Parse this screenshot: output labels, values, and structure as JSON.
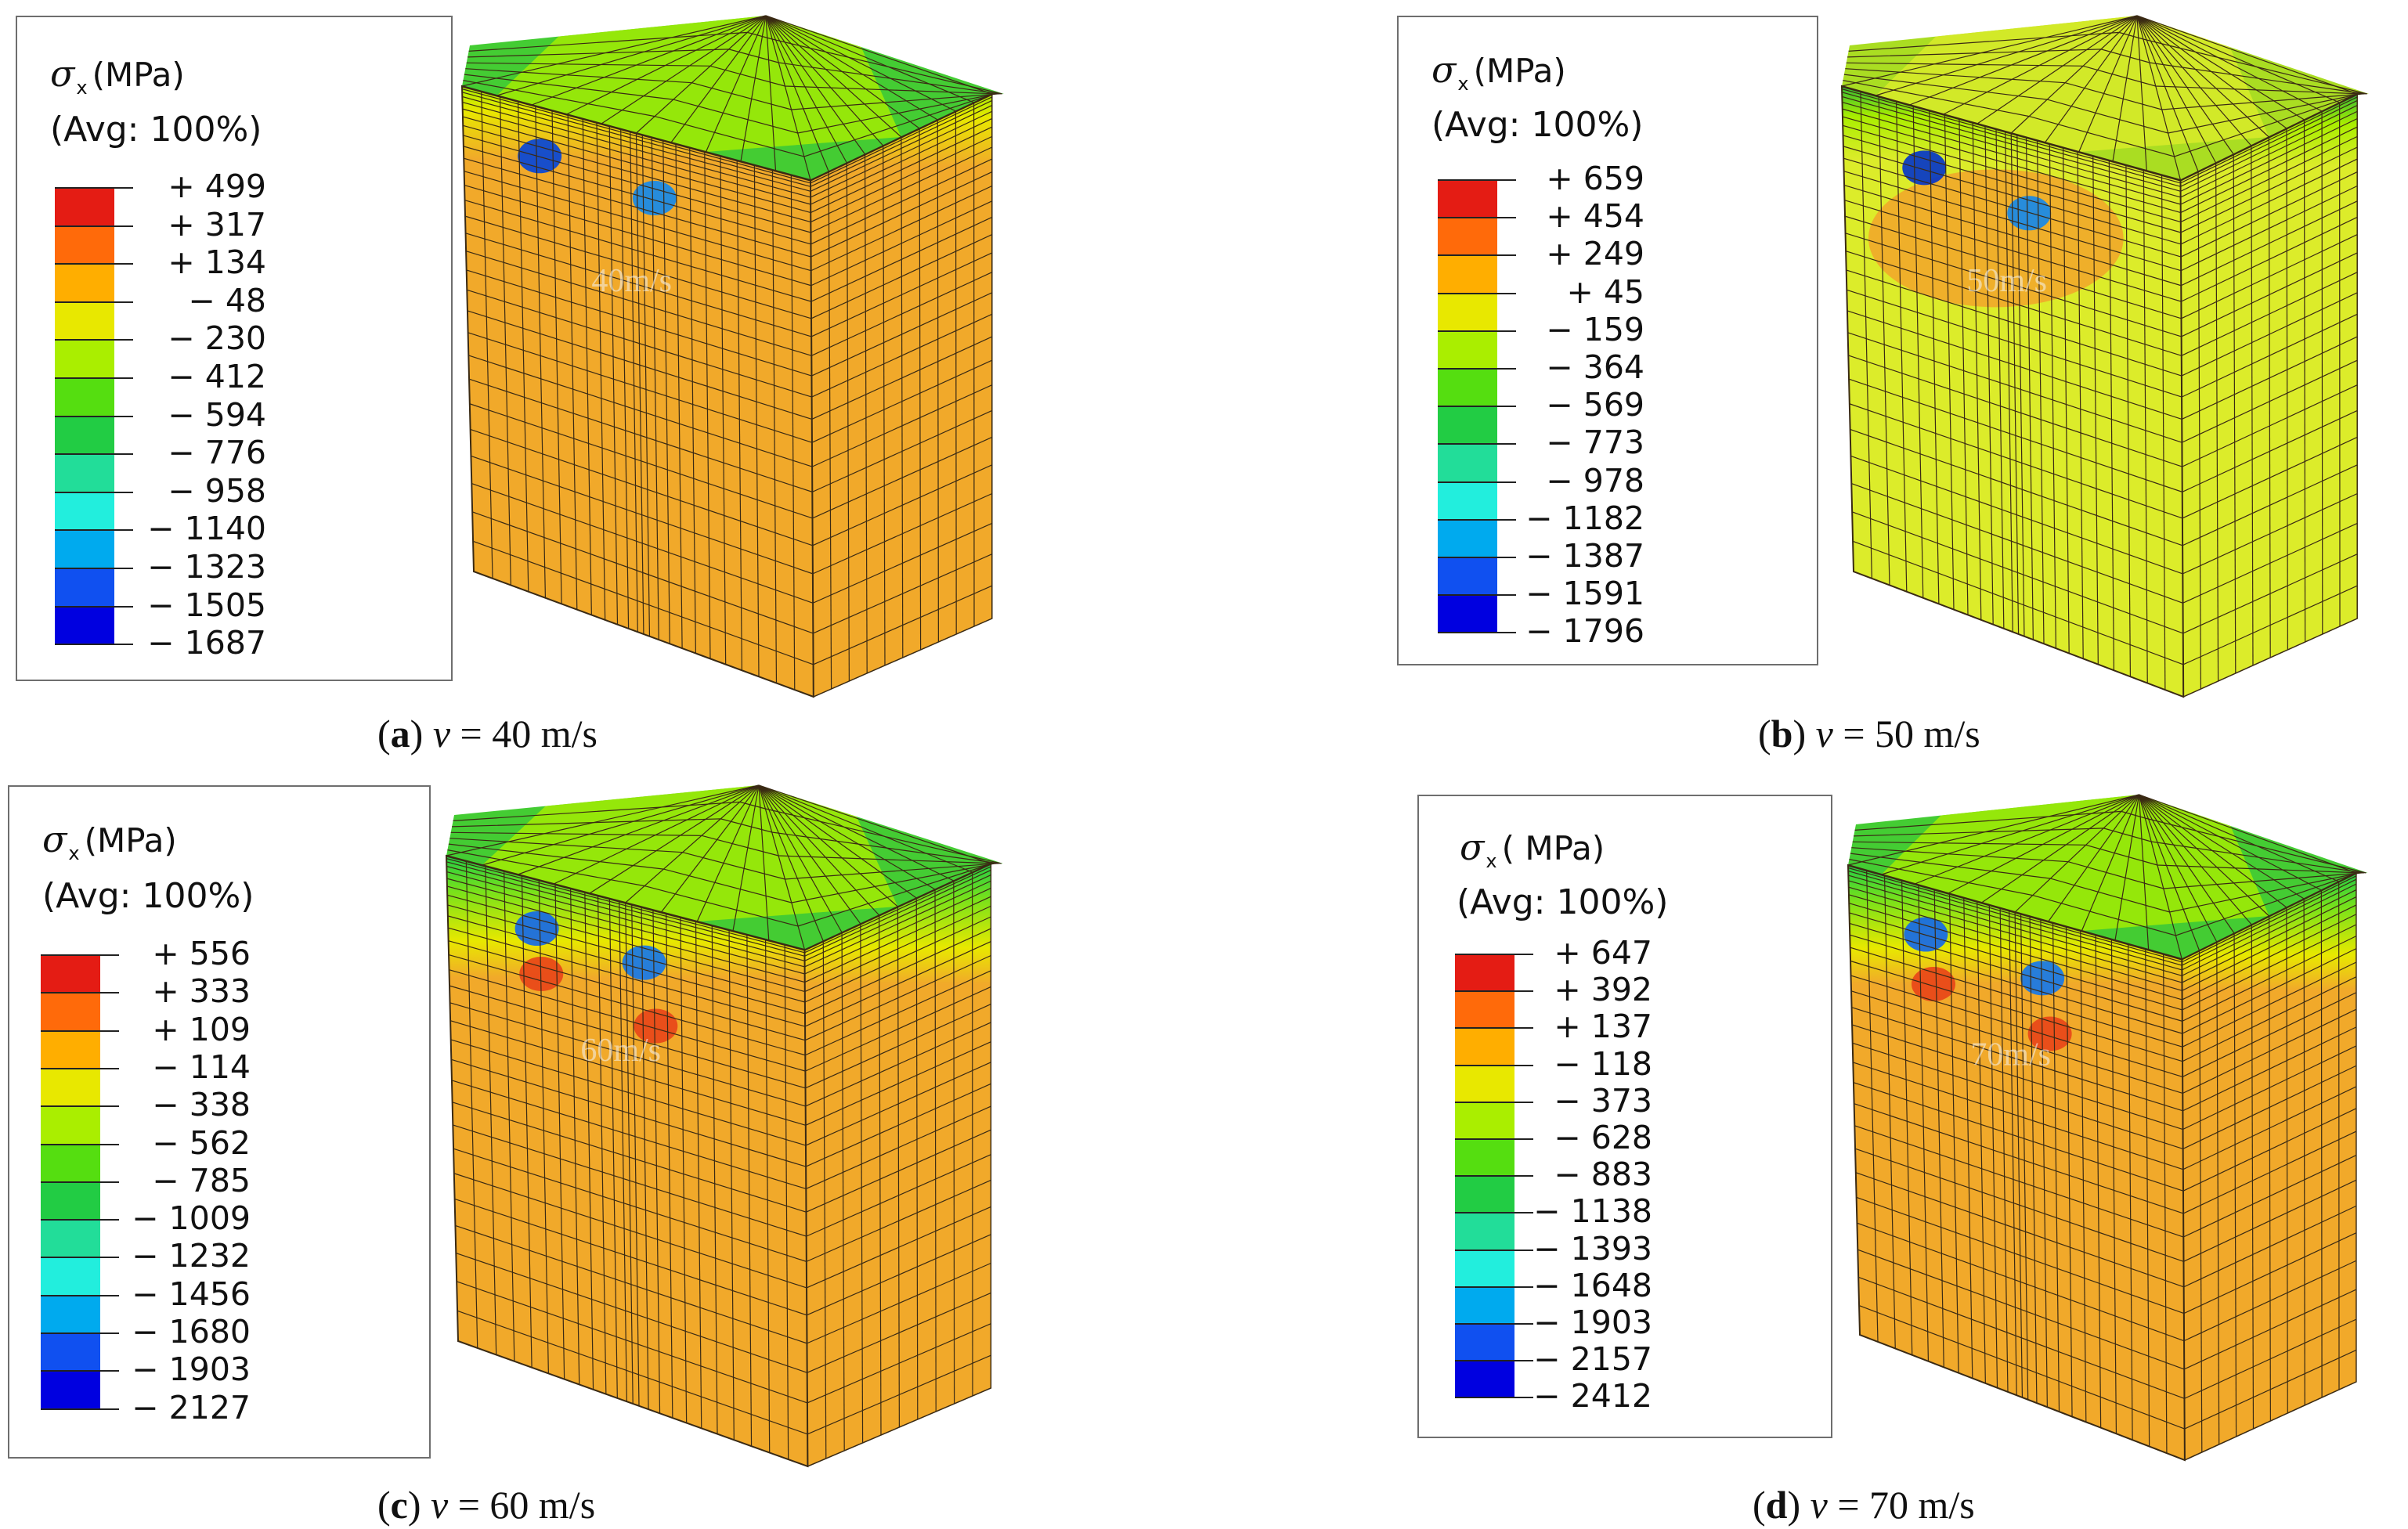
{
  "colors": {
    "legend": [
      "#e41c14",
      "#ff6a0a",
      "#ffae00",
      "#e8e800",
      "#aaee00",
      "#55de10",
      "#22cc44",
      "#22dd99",
      "#22eedd",
      "#00aaee",
      "#1050f0",
      "#0000e0"
    ],
    "orange_body": "#f1a92a",
    "yellow_body": "#dcec2a",
    "mesh_line": "#3a2a14"
  },
  "panels": [
    {
      "id": "a",
      "legend_title_sym": "σ",
      "legend_title_sub": "x",
      "legend_title_unit": "(MPa)",
      "legend_avg": "(Avg: 100%)",
      "legend_values": [
        "+ 499",
        "+ 317",
        "+ 134",
        "− 48",
        "− 230",
        "− 412",
        "− 594",
        "− 776",
        "− 958",
        "− 1140",
        "− 1323",
        "− 1505",
        "− 1687"
      ],
      "speed_label": "40m/s",
      "caption_letter": "a",
      "caption_var": "v",
      "caption_rest": " = 40 m/s",
      "body_color": "orange"
    },
    {
      "id": "b",
      "legend_title_sym": "σ",
      "legend_title_sub": "x",
      "legend_title_unit": "(MPa)",
      "legend_avg": "(Avg: 100%)",
      "legend_values": [
        "+ 659",
        "+ 454",
        "+ 249",
        "+ 45",
        "− 159",
        "− 364",
        "− 569",
        "− 773",
        "− 978",
        "− 1182",
        "− 1387",
        "− 1591",
        "− 1796"
      ],
      "speed_label": "50m/s",
      "caption_letter": "b",
      "caption_var": "v",
      "caption_rest": " = 50 m/s",
      "body_color": "yellow"
    },
    {
      "id": "c",
      "legend_title_sym": "σ",
      "legend_title_sub": "x",
      "legend_title_unit": "(MPa)",
      "legend_avg": "(Avg: 100%)",
      "legend_values": [
        "+ 556",
        "+ 333",
        "+ 109",
        "− 114",
        "− 338",
        "− 562",
        "− 785",
        "− 1009",
        "− 1232",
        "− 1456",
        "− 1680",
        "− 1903",
        "− 2127"
      ],
      "speed_label": "60m/s",
      "caption_letter": "c",
      "caption_var": "v",
      "caption_rest": " = 60 m/s",
      "body_color": "orange"
    },
    {
      "id": "d",
      "legend_title_sym": "σ",
      "legend_title_sub": "x",
      "legend_title_unit": "( MPa)",
      "legend_avg": "(Avg: 100%)",
      "legend_values": [
        "+ 647",
        "+ 392",
        "+ 137",
        "− 118",
        "− 373",
        "− 628",
        "− 883",
        "− 1138",
        "− 1393",
        "− 1648",
        "− 1903",
        "− 2157",
        "− 2412"
      ],
      "speed_label": "70m/s",
      "caption_letter": "d",
      "caption_var": "v",
      "caption_rest": " = 70 m/s",
      "body_color": "orange"
    }
  ]
}
